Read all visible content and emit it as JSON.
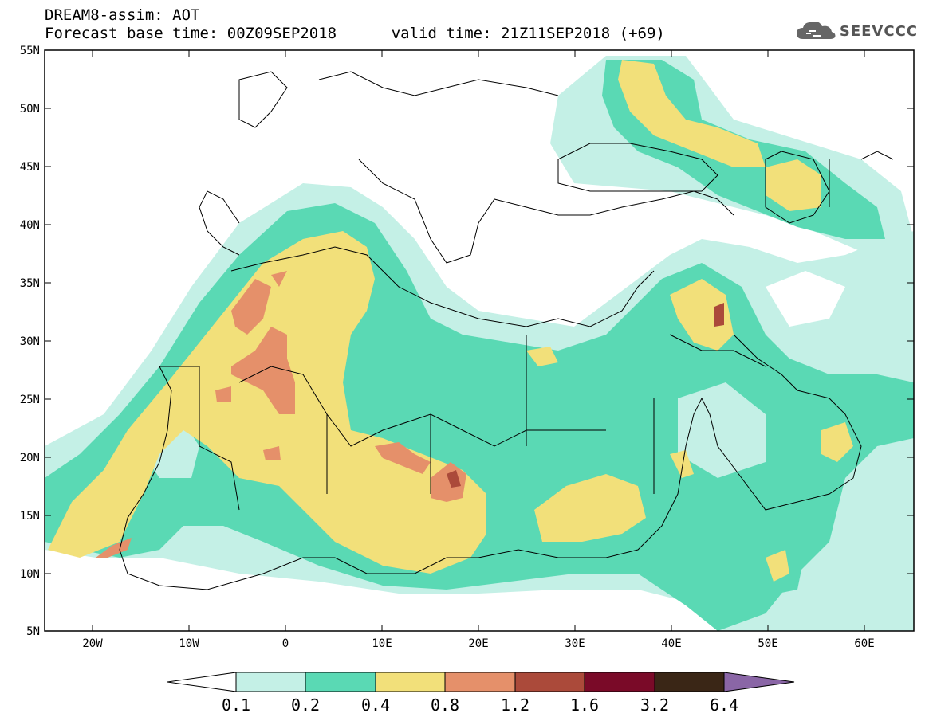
{
  "title": {
    "line1": "DREAM8-assim: AOT",
    "base_label": "Forecast base time: 00Z09SEP2018",
    "valid_label": "valid time: 21Z11SEP2018 (+69)"
  },
  "logo": {
    "text": "SEEVCCC",
    "icon": "cloud-logo-icon"
  },
  "map": {
    "lat_labels": [
      "55N",
      "50N",
      "45N",
      "40N",
      "35N",
      "30N",
      "25N",
      "20N",
      "15N",
      "10N",
      "5N"
    ],
    "lon_labels": [
      "20W",
      "10W",
      "0",
      "10E",
      "20E",
      "30E",
      "40E",
      "50E",
      "60E"
    ]
  },
  "colorbar": {
    "labels": [
      "0.1",
      "0.2",
      "0.4",
      "0.8",
      "1.2",
      "1.6",
      "3.2",
      "6.4"
    ],
    "colors": [
      "#c4f0e6",
      "#5ad9b4",
      "#f2e07a",
      "#e5906a",
      "#ab4a3a",
      "#7a0a28",
      "#3a2616",
      "#8a66a6"
    ]
  },
  "colors": {
    "c1": "#c4f0e6",
    "c2": "#5ad9b4",
    "c3": "#f2e07a",
    "c4": "#e5906a",
    "c5": "#ab4a3a"
  }
}
